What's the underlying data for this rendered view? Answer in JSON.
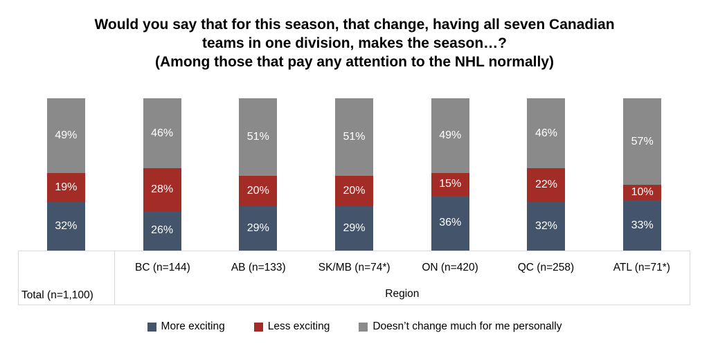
{
  "title": "Would you say that for this season, that change, having all seven Canadian\nteams in one division, makes the season…?\n(Among those that pay any attention to the NHL normally)",
  "chart_data": {
    "type": "bar",
    "subtype": "stacked-column",
    "categories": [
      "Total (n=1,100)",
      "BC (n=144)",
      "AB (n=133)",
      "SK/MB (n=74*)",
      "ON (n=420)",
      "QC (n=258)",
      "ATL (n=71*)"
    ],
    "group_axis_label": "Region",
    "value_suffix": "%",
    "series": [
      {
        "name": "More exciting",
        "color": "#44546A",
        "values": [
          32,
          26,
          29,
          29,
          36,
          32,
          33
        ]
      },
      {
        "name": "Less exciting",
        "color": "#A32C26",
        "values": [
          19,
          28,
          20,
          20,
          15,
          22,
          10
        ]
      },
      {
        "name": "Doesn’t change much for me personally",
        "color": "#8A8A8A",
        "values": [
          49,
          46,
          51,
          51,
          49,
          46,
          57
        ]
      }
    ],
    "ylim": [
      0,
      100
    ],
    "grid": false,
    "legend_position": "bottom",
    "data_labels": "inside-center-white"
  },
  "colors": {
    "background": "#FFFFFF",
    "table_border": "#D9D9D9",
    "data_label_text": "#FFFFFF",
    "text": "#000000"
  }
}
